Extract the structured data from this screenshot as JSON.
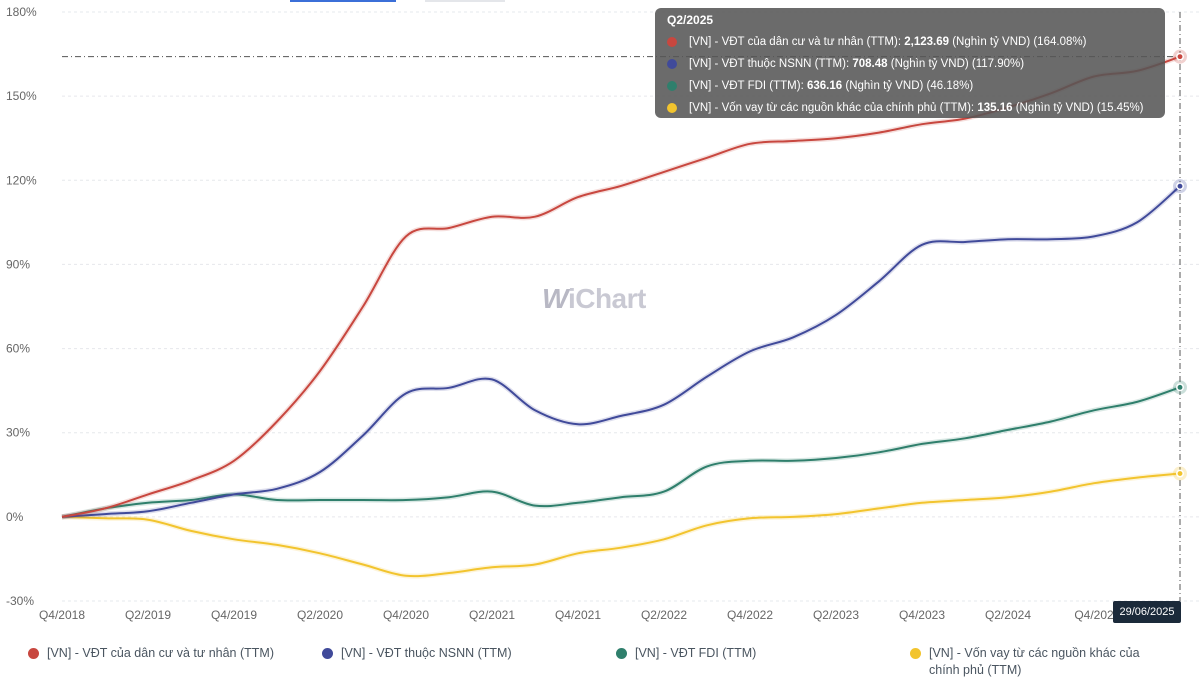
{
  "chart_data": {
    "type": "line",
    "x": [
      "Q4/2018",
      "Q1/2019",
      "Q2/2019",
      "Q3/2019",
      "Q4/2019",
      "Q1/2020",
      "Q2/2020",
      "Q3/2020",
      "Q4/2020",
      "Q1/2021",
      "Q2/2021",
      "Q3/2021",
      "Q4/2021",
      "Q1/2022",
      "Q2/2022",
      "Q3/2022",
      "Q4/2022",
      "Q1/2023",
      "Q2/2023",
      "Q3/2023",
      "Q4/2023",
      "Q1/2024",
      "Q2/2024",
      "Q3/2024",
      "Q4/2024",
      "Q1/2025",
      "Q2/2025"
    ],
    "x_tick_labels": [
      "Q4/2018",
      "Q2/2019",
      "Q4/2019",
      "Q2/2020",
      "Q4/2020",
      "Q2/2021",
      "Q4/2021",
      "Q2/2022",
      "Q4/2022",
      "Q2/2023",
      "Q4/2023",
      "Q2/2024",
      "Q4/202"
    ],
    "y_tick_labels": [
      "180%",
      "150%",
      "120%",
      "90%",
      "60%",
      "30%",
      "0%",
      "-30%"
    ],
    "ylim": [
      -30,
      180
    ],
    "grid": "horizontal dashed",
    "series": [
      {
        "name": "[VN] - VĐT của dân cư và tư nhân (TTM)",
        "color": "#c8473f",
        "values": [
          0,
          3,
          8,
          13,
          20,
          34,
          52,
          75,
          100,
          103,
          107,
          107,
          114,
          118,
          123,
          128,
          133,
          134,
          135,
          137,
          140,
          142,
          146,
          151,
          157,
          159,
          164.08
        ]
      },
      {
        "name": "[VN] - VĐT thuộc NSNN (TTM)",
        "color": "#404a9a",
        "values": [
          0,
          1,
          2,
          5,
          8,
          10,
          16,
          29,
          44,
          46,
          49,
          38,
          33,
          36,
          40,
          50,
          59,
          64,
          72,
          84,
          97,
          98,
          99,
          99,
          100,
          105,
          117.9
        ]
      },
      {
        "name": "[VN] - VĐT FDI (TTM)",
        "color": "#2f7f6c",
        "values": [
          0,
          3,
          5,
          6,
          8,
          6,
          6,
          6,
          6,
          7,
          9,
          4,
          5,
          7,
          9,
          18,
          20,
          20,
          21,
          23,
          26,
          28,
          31,
          34,
          38,
          41,
          46.18
        ]
      },
      {
        "name": "[VN] - Vốn vay từ các nguồn khác của chính phủ (TTM)",
        "color": "#f2c42e",
        "values": [
          0,
          -0.5,
          -1,
          -5,
          -8,
          -10,
          -13,
          -17,
          -21,
          -20,
          -18,
          -17,
          -13,
          -11,
          -8,
          -3,
          -0.5,
          0,
          1,
          3,
          5,
          6,
          7,
          9,
          12,
          14,
          15.45
        ]
      }
    ]
  },
  "legend": {
    "items": [
      {
        "label": "[VN] - VĐT của dân cư và tư nhân (TTM)",
        "color": "#c8473f"
      },
      {
        "label": "[VN] - VĐT thuộc NSNN (TTM)",
        "color": "#404a9a"
      },
      {
        "label": "[VN] - VĐT FDI (TTM)",
        "color": "#2f7f6c"
      },
      {
        "label": "[VN] - Vốn vay từ các nguồn khác của chính phủ (TTM)",
        "color": "#f2c42e"
      }
    ]
  },
  "tooltip": {
    "title": "Q2/2025",
    "rows": [
      {
        "name": "[VN] - VĐT của dân cư và tư nhân (TTM): ",
        "value": "2,123.69",
        "suffix": " (Nghìn tỷ VND) (164.08%)",
        "color": "#c8473f"
      },
      {
        "name": "[VN] - VĐT thuộc NSNN (TTM): ",
        "value": "708.48",
        "suffix": " (Nghìn tỷ VND) (117.90%)",
        "color": "#404a9a"
      },
      {
        "name": "[VN] - VĐT FDI (TTM): ",
        "value": "636.16",
        "suffix": " (Nghìn tỷ VND) (46.18%)",
        "color": "#2f7f6c"
      },
      {
        "name": "[VN] - Vốn vay từ các nguồn khác của chính phủ (TTM): ",
        "value": "135.16",
        "suffix": " (Nghìn tỷ VND) (15.45%)",
        "color": "#f2c42e"
      }
    ]
  },
  "crosshair_date": "29/06/2025",
  "watermark": {
    "first": "W",
    "rest": "iChart"
  }
}
